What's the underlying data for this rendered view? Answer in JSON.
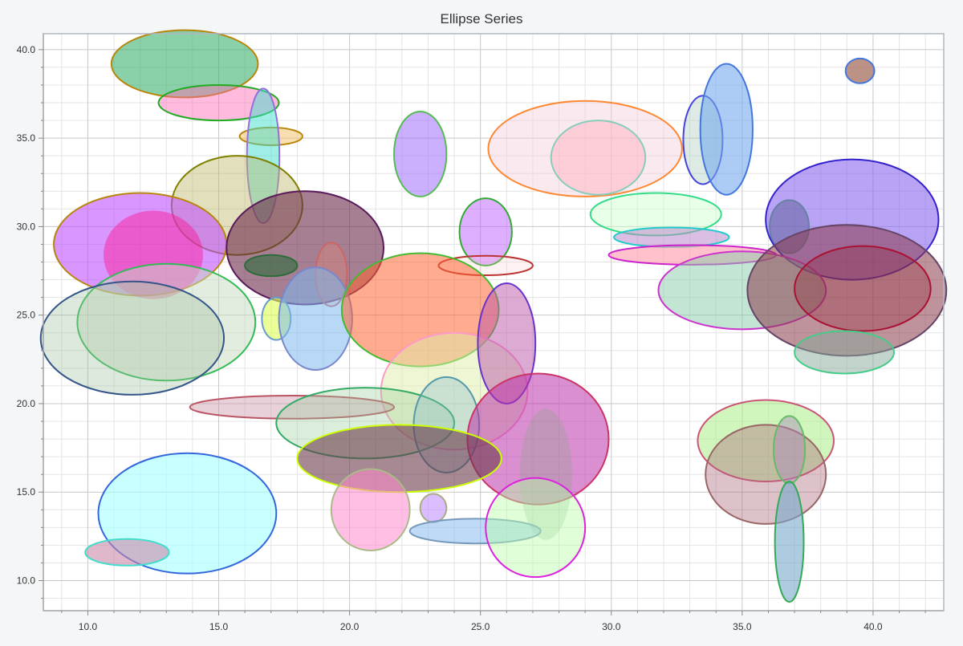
{
  "chart_data": {
    "type": "scatter",
    "title": "Ellipse Series",
    "xlabel": "",
    "ylabel": "",
    "xlim": [
      8.3,
      42.7
    ],
    "ylim": [
      8.3,
      40.9
    ],
    "x_ticks": [
      "10.0",
      "15.0",
      "20.0",
      "25.0",
      "30.0",
      "35.0",
      "40.0"
    ],
    "x_tick_values": [
      10,
      15,
      20,
      25,
      30,
      35,
      40
    ],
    "y_ticks": [
      "10.0",
      "15.0",
      "20.0",
      "25.0",
      "30.0",
      "35.0",
      "40.0"
    ],
    "y_tick_values": [
      10,
      15,
      20,
      25,
      30,
      35,
      40
    ],
    "grid": true,
    "minor_step": 1,
    "series": [
      {
        "cx": 13.7,
        "cy": 39.2,
        "rx": 2.8,
        "ry": 1.9,
        "fill": "#3cb371",
        "fillOpacity": 0.6,
        "stroke": "#b8860b"
      },
      {
        "cx": 15.0,
        "cy": 37.0,
        "rx": 2.3,
        "ry": 1.0,
        "fill": "#ff69b4",
        "fillOpacity": 0.45,
        "stroke": "#22aa22"
      },
      {
        "cx": 17.0,
        "cy": 35.1,
        "rx": 1.2,
        "ry": 0.5,
        "fill": "#f0c060",
        "fillOpacity": 0.5,
        "stroke": "#b8860b"
      },
      {
        "cx": 16.7,
        "cy": 34.0,
        "rx": 0.62,
        "ry": 3.8,
        "fill": "#40e0d0",
        "fillOpacity": 0.5,
        "stroke": "#9370db"
      },
      {
        "cx": 15.7,
        "cy": 31.2,
        "rx": 2.5,
        "ry": 2.8,
        "fill": "#bdb76b",
        "fillOpacity": 0.45,
        "stroke": "#808000"
      },
      {
        "cx": 12.0,
        "cy": 29.0,
        "rx": 3.3,
        "ry": 2.9,
        "fill": "#c050ff",
        "fillOpacity": 0.6,
        "stroke": "#b8860b"
      },
      {
        "cx": 12.5,
        "cy": 28.4,
        "rx": 1.9,
        "ry": 2.5,
        "fill": "#ff1493",
        "fillOpacity": 0.45,
        "stroke": "none"
      },
      {
        "cx": 18.3,
        "cy": 28.8,
        "rx": 3.0,
        "ry": 3.2,
        "fill": "#6b2a4a",
        "fillOpacity": 0.6,
        "stroke": "#5a1a5a"
      },
      {
        "cx": 17.0,
        "cy": 27.8,
        "rx": 1.0,
        "ry": 0.6,
        "fill": "#2e6b3a",
        "fillOpacity": 0.6,
        "stroke": "#2e6b3a"
      },
      {
        "cx": 19.3,
        "cy": 27.3,
        "rx": 0.6,
        "ry": 1.8,
        "fill": "#ff8c66",
        "fillOpacity": 0.25,
        "stroke": "#cc6666"
      },
      {
        "cx": 13.0,
        "cy": 24.6,
        "rx": 3.4,
        "ry": 3.3,
        "fill": "#c8dcc0",
        "fillOpacity": 0.5,
        "stroke": "#33bb55"
      },
      {
        "cx": 11.7,
        "cy": 23.7,
        "rx": 3.5,
        "ry": 3.2,
        "fill": "#9fc09f",
        "fillOpacity": 0.35,
        "stroke": "#335588"
      },
      {
        "cx": 17.2,
        "cy": 24.8,
        "rx": 0.55,
        "ry": 1.2,
        "fill": "#ddff55",
        "fillOpacity": 0.6,
        "stroke": "#6699cc"
      },
      {
        "cx": 18.7,
        "cy": 24.8,
        "rx": 1.4,
        "ry": 2.9,
        "fill": "#7fb8ee",
        "fillOpacity": 0.55,
        "stroke": "#7788cc"
      },
      {
        "cx": 22.7,
        "cy": 34.1,
        "rx": 1.0,
        "ry": 2.4,
        "fill": "#a070ff",
        "fillOpacity": 0.55,
        "stroke": "#55bb55"
      },
      {
        "cx": 25.2,
        "cy": 29.7,
        "rx": 1.0,
        "ry": 1.9,
        "fill": "#c060ff",
        "fillOpacity": 0.5,
        "stroke": "#33aa33"
      },
      {
        "cx": 25.2,
        "cy": 27.8,
        "rx": 1.8,
        "ry": 0.55,
        "fill": "#ffcccc",
        "fillOpacity": 0.25,
        "stroke": "#bb3333"
      },
      {
        "cx": 22.7,
        "cy": 25.3,
        "rx": 3.0,
        "ry": 3.2,
        "fill": "#ff6633",
        "fillOpacity": 0.55,
        "stroke": "#44bb33"
      },
      {
        "cx": 24.0,
        "cy": 20.7,
        "rx": 2.8,
        "ry": 3.3,
        "fill": "#ddeeaa",
        "fillOpacity": 0.5,
        "stroke": "#ff99cc"
      },
      {
        "cx": 26.0,
        "cy": 23.4,
        "rx": 1.1,
        "ry": 3.4,
        "fill": "#bb55aa",
        "fillOpacity": 0.5,
        "stroke": "#6633cc"
      },
      {
        "cx": 17.8,
        "cy": 19.8,
        "rx": 3.9,
        "ry": 0.65,
        "fill": "#cc99aa",
        "fillOpacity": 0.45,
        "stroke": "#bb5566"
      },
      {
        "cx": 20.6,
        "cy": 18.9,
        "rx": 3.4,
        "ry": 2.0,
        "fill": "#99cc99",
        "fillOpacity": 0.35,
        "stroke": "#33aa66"
      },
      {
        "cx": 23.7,
        "cy": 18.8,
        "rx": 1.25,
        "ry": 2.7,
        "fill": "#88bbcc",
        "fillOpacity": 0.35,
        "stroke": "#5599aa"
      },
      {
        "cx": 27.2,
        "cy": 18.0,
        "rx": 2.7,
        "ry": 3.7,
        "fill": "#bb33aa",
        "fillOpacity": 0.55,
        "stroke": "#cc3366"
      },
      {
        "cx": 21.9,
        "cy": 16.9,
        "rx": 3.9,
        "ry": 1.9,
        "fill": "#6b3a4a",
        "fillOpacity": 0.6,
        "stroke": "#ccff00"
      },
      {
        "cx": 27.5,
        "cy": 16.0,
        "rx": 1.0,
        "ry": 3.7,
        "fill": "#88aa88",
        "fillOpacity": 0.3,
        "stroke": "none"
      },
      {
        "cx": 13.8,
        "cy": 13.8,
        "rx": 3.4,
        "ry": 3.4,
        "fill": "#aaffff",
        "fillOpacity": 0.65,
        "stroke": "#3366dd"
      },
      {
        "cx": 11.5,
        "cy": 11.6,
        "rx": 1.6,
        "ry": 0.75,
        "fill": "#cc88aa",
        "fillOpacity": 0.6,
        "stroke": "#44ddcc"
      },
      {
        "cx": 20.8,
        "cy": 14.0,
        "rx": 1.5,
        "ry": 2.3,
        "fill": "#ff88cc",
        "fillOpacity": 0.55,
        "stroke": "#aabb88"
      },
      {
        "cx": 23.2,
        "cy": 14.1,
        "rx": 0.5,
        "ry": 0.8,
        "fill": "#bb88ff",
        "fillOpacity": 0.55,
        "stroke": "#aaaa88"
      },
      {
        "cx": 24.8,
        "cy": 12.8,
        "rx": 2.5,
        "ry": 0.7,
        "fill": "#88bbee",
        "fillOpacity": 0.55,
        "stroke": "#7799bb"
      },
      {
        "cx": 27.1,
        "cy": 13.0,
        "rx": 1.9,
        "ry": 2.8,
        "fill": "#bbffaa",
        "fillOpacity": 0.45,
        "stroke": "#dd22dd"
      },
      {
        "cx": 29.0,
        "cy": 34.4,
        "rx": 3.7,
        "ry": 2.7,
        "fill": "#f5d0dd",
        "fillOpacity": 0.45,
        "stroke": "#ff8833"
      },
      {
        "cx": 29.5,
        "cy": 33.9,
        "rx": 1.8,
        "ry": 2.1,
        "fill": "#ffb0c0",
        "fillOpacity": 0.5,
        "stroke": "#88ccbb"
      },
      {
        "cx": 31.7,
        "cy": 30.7,
        "rx": 2.5,
        "ry": 1.2,
        "fill": "#ccffcc",
        "fillOpacity": 0.45,
        "stroke": "#33dd88"
      },
      {
        "cx": 32.3,
        "cy": 29.4,
        "rx": 2.2,
        "ry": 0.55,
        "fill": "#bb88cc",
        "fillOpacity": 0.55,
        "stroke": "#22cccc"
      },
      {
        "cx": 33.1,
        "cy": 28.4,
        "rx": 3.2,
        "ry": 0.55,
        "fill": "#ff99aa",
        "fillOpacity": 0.6,
        "stroke": "#cc22cc"
      },
      {
        "cx": 33.5,
        "cy": 34.9,
        "rx": 0.75,
        "ry": 2.5,
        "fill": "#aaccbb",
        "fillOpacity": 0.4,
        "stroke": "#4444dd"
      },
      {
        "cx": 34.4,
        "cy": 35.5,
        "rx": 1.0,
        "ry": 3.7,
        "fill": "#77aaee",
        "fillOpacity": 0.6,
        "stroke": "#4477dd"
      },
      {
        "cx": 36.8,
        "cy": 30.0,
        "rx": 0.75,
        "ry": 1.5,
        "fill": "#3a6f3a",
        "fillOpacity": 0.6,
        "stroke": "#33aa33"
      },
      {
        "cx": 39.5,
        "cy": 38.8,
        "rx": 0.55,
        "ry": 0.7,
        "fill": "#aa7766",
        "fillOpacity": 0.8,
        "stroke": "#4477dd"
      },
      {
        "cx": 39.2,
        "cy": 30.4,
        "rx": 3.3,
        "ry": 3.4,
        "fill": "#8866ee",
        "fillOpacity": 0.6,
        "stroke": "#3322cc"
      },
      {
        "cx": 35.0,
        "cy": 26.4,
        "rx": 3.2,
        "ry": 2.2,
        "fill": "#88ccaa",
        "fillOpacity": 0.5,
        "stroke": "#cc33cc"
      },
      {
        "cx": 39.0,
        "cy": 26.4,
        "rx": 3.8,
        "ry": 3.7,
        "fill": "#8a3a4a",
        "fillOpacity": 0.55,
        "stroke": "#664466"
      },
      {
        "cx": 39.6,
        "cy": 26.5,
        "rx": 2.6,
        "ry": 2.4,
        "fill": "#8a2233",
        "fillOpacity": 0.3,
        "stroke": "#aa1133"
      },
      {
        "cx": 38.9,
        "cy": 22.9,
        "rx": 1.9,
        "ry": 1.2,
        "fill": "#88aa99",
        "fillOpacity": 0.5,
        "stroke": "#44cc88"
      },
      {
        "cx": 35.9,
        "cy": 17.9,
        "rx": 2.6,
        "ry": 2.3,
        "fill": "#aaee88",
        "fillOpacity": 0.55,
        "stroke": "#cc5577"
      },
      {
        "cx": 35.9,
        "cy": 16.0,
        "rx": 2.3,
        "ry": 2.8,
        "fill": "#aa6677",
        "fillOpacity": 0.4,
        "stroke": "#996666"
      },
      {
        "cx": 36.8,
        "cy": 17.4,
        "rx": 0.6,
        "ry": 1.9,
        "fill": "#aa88bb",
        "fillOpacity": 0.45,
        "stroke": "#66bb66"
      },
      {
        "cx": 36.8,
        "cy": 12.2,
        "rx": 0.55,
        "ry": 3.4,
        "fill": "#77aacc",
        "fillOpacity": 0.6,
        "stroke": "#33aa55"
      }
    ]
  }
}
